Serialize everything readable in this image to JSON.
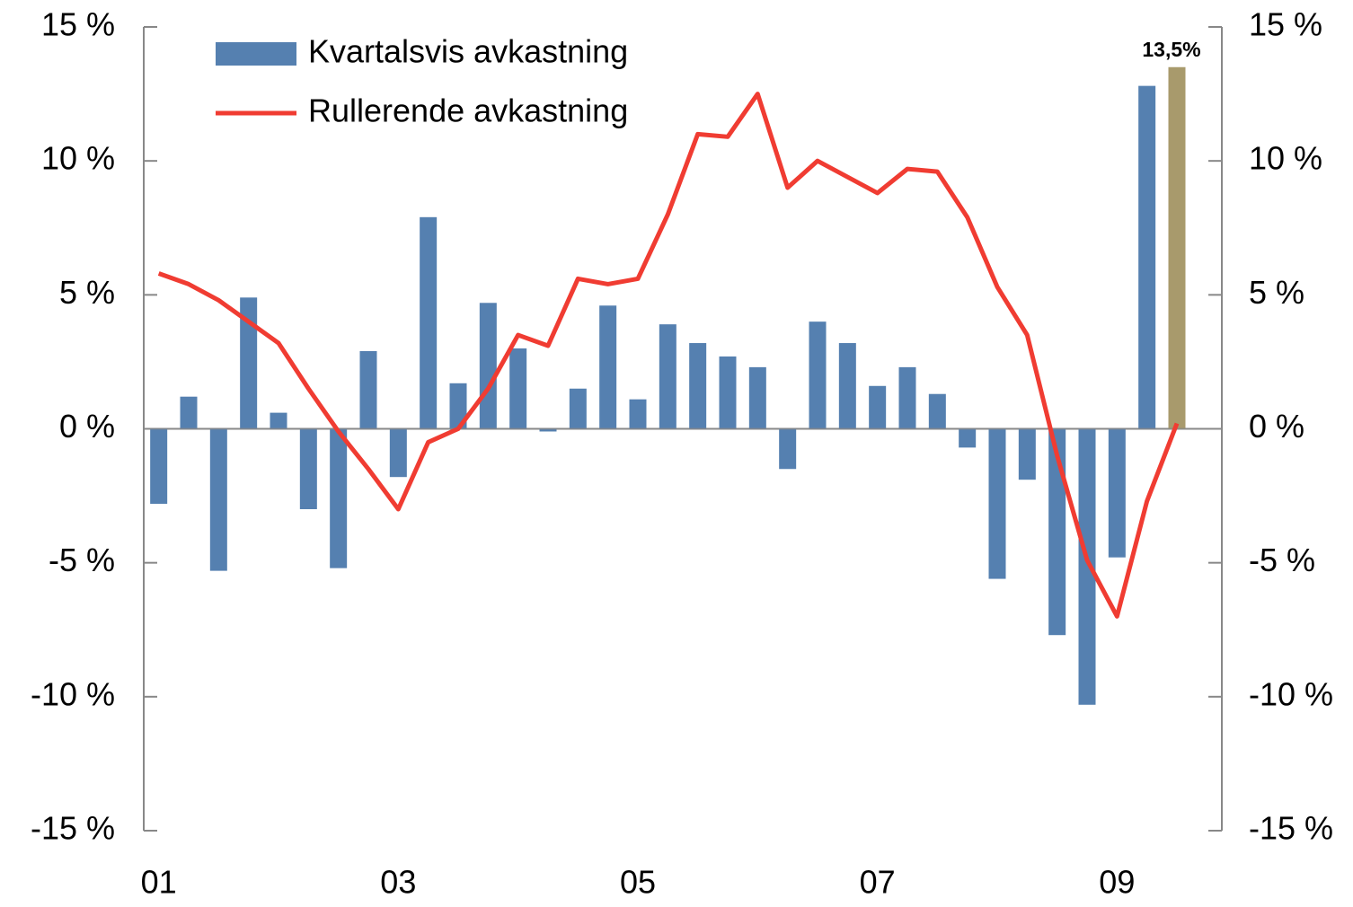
{
  "chart_data": {
    "type": "bar",
    "categories": [
      "01",
      null,
      null,
      null,
      null,
      null,
      null,
      null,
      "03",
      null,
      null,
      null,
      null,
      null,
      null,
      null,
      "05",
      null,
      null,
      null,
      null,
      null,
      null,
      null,
      "07",
      null,
      null,
      null,
      null,
      null,
      null,
      null,
      "09",
      null,
      null
    ],
    "series": [
      {
        "name": "Kvartalsvis avkastning",
        "type": "bar",
        "color": "#5580b0",
        "colors": [
          "#5580b0",
          "#5580b0",
          "#5580b0",
          "#5580b0",
          "#5580b0",
          "#5580b0",
          "#5580b0",
          "#5580b0",
          "#5580b0",
          "#5580b0",
          "#5580b0",
          "#5580b0",
          "#5580b0",
          "#5580b0",
          "#5580b0",
          "#5580b0",
          "#5580b0",
          "#5580b0",
          "#5580b0",
          "#5580b0",
          "#5580b0",
          "#5580b0",
          "#5580b0",
          "#5580b0",
          "#5580b0",
          "#5580b0",
          "#5580b0",
          "#5580b0",
          "#5580b0",
          "#5580b0",
          "#5580b0",
          "#5580b0",
          "#5580b0",
          "#5580b0",
          "#a89a6c"
        ],
        "values": [
          -2.8,
          1.2,
          -5.3,
          4.9,
          0.6,
          -3.0,
          -5.2,
          2.9,
          -1.8,
          7.9,
          1.7,
          4.7,
          3.0,
          -0.1,
          1.5,
          4.6,
          1.1,
          3.9,
          3.2,
          2.7,
          2.3,
          -1.5,
          4.0,
          3.2,
          1.6,
          2.3,
          1.3,
          -0.7,
          -5.6,
          -1.9,
          -7.7,
          -10.3,
          -4.8,
          12.8,
          13.5
        ],
        "value_labels": [
          null,
          null,
          null,
          null,
          null,
          null,
          null,
          null,
          null,
          null,
          null,
          null,
          null,
          null,
          null,
          null,
          null,
          null,
          null,
          null,
          null,
          null,
          null,
          null,
          null,
          null,
          null,
          null,
          null,
          null,
          null,
          null,
          null,
          null,
          "13,5%"
        ]
      },
      {
        "name": "Rullerende avkastning",
        "type": "line",
        "color": "#f03c32",
        "values": [
          5.8,
          5.4,
          4.8,
          4.0,
          3.2,
          1.5,
          -0.1,
          -1.5,
          -3.0,
          -0.5,
          0.0,
          1.5,
          3.5,
          3.1,
          5.6,
          5.4,
          5.6,
          8.0,
          11.0,
          10.9,
          12.5,
          9.0,
          10.0,
          9.4,
          8.8,
          9.7,
          9.6,
          7.9,
          5.3,
          3.5,
          -1.0,
          -4.9,
          -7.0,
          -2.7,
          0.2
        ]
      }
    ],
    "ylim": [
      -15,
      15
    ],
    "yticks": [
      {
        "value": -15,
        "label": "-15 %"
      },
      {
        "value": -10,
        "label": "-10 %"
      },
      {
        "value": -5,
        "label": "-5 %"
      },
      {
        "value": 0,
        "label": "0 %"
      },
      {
        "value": 5,
        "label": "5 %"
      },
      {
        "value": 10,
        "label": "10 %"
      },
      {
        "value": 15,
        "label": "15 %"
      }
    ],
    "y2lim": [
      -15,
      15
    ],
    "y2ticks": [
      {
        "value": -15,
        "label": "-15 %"
      },
      {
        "value": -10,
        "label": "-10 %"
      },
      {
        "value": -5,
        "label": "-5 %"
      },
      {
        "value": 0,
        "label": "0 %"
      },
      {
        "value": 5,
        "label": "5 %"
      },
      {
        "value": 10,
        "label": "10 %"
      },
      {
        "value": 15,
        "label": "15 %"
      }
    ],
    "legend": "top-left"
  }
}
